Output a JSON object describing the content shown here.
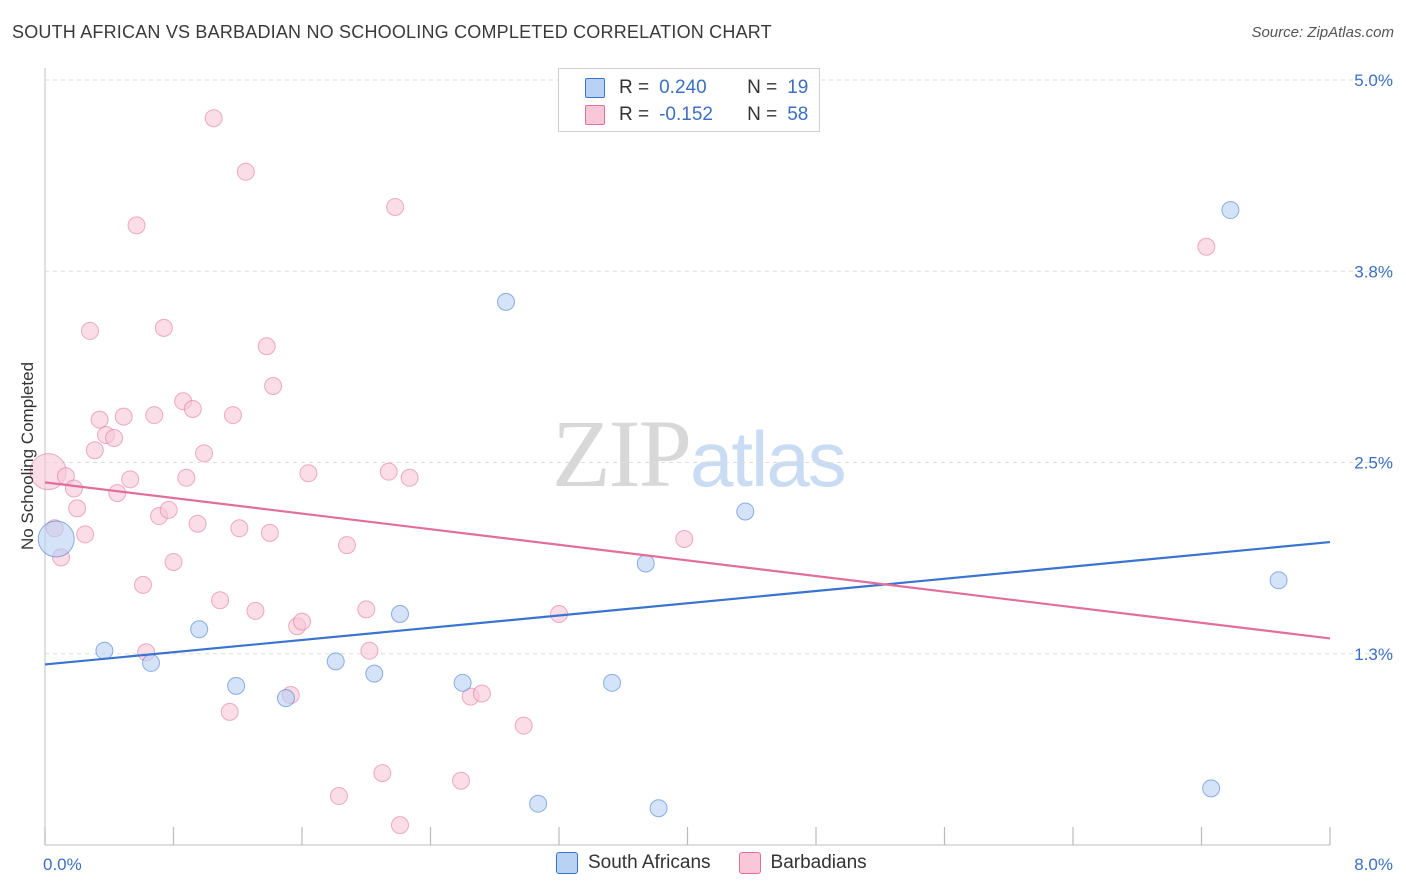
{
  "header": {
    "title": "SOUTH AFRICAN VS BARBADIAN NO SCHOOLING COMPLETED CORRELATION CHART",
    "source": "Source: ZipAtlas.com"
  },
  "watermark": {
    "zip": "ZIP",
    "atlas": "atlas"
  },
  "legend": {
    "rows": [
      {
        "r_label": "R =",
        "r_value": "0.240",
        "n_label": "N =",
        "n_value": "19"
      },
      {
        "r_label": "R =",
        "r_value": "-0.152",
        "n_label": "N =",
        "n_value": "58"
      }
    ]
  },
  "chart_data": {
    "type": "scatter",
    "title": "SOUTH AFRICAN VS BARBADIAN NO SCHOOLING COMPLETED CORRELATION CHART",
    "ylabel": "No Schooling Completed",
    "xlim": [
      0,
      8
    ],
    "ylim": [
      0,
      5.0
    ],
    "x_tick_labels": [
      "0.0%",
      "8.0%"
    ],
    "y_tick_values": [
      1.25,
      2.5,
      3.75,
      5.0
    ],
    "y_tick_labels": [
      "1.3%",
      "2.5%",
      "3.8%",
      "5.0%"
    ],
    "grid": true,
    "legend_position": "top-center",
    "colors": {
      "south_africans": "#3a74d0",
      "south_africans_fill": "#b9d1f3",
      "barbadians": "#e0709a",
      "barbadians_fill": "#f9c7d7",
      "axis_label": "#3b6fc5"
    },
    "series": [
      {
        "name": "South Africans",
        "r": 0.24,
        "n": 19,
        "trend": {
          "x": [
            0,
            8
          ],
          "y": [
            1.18,
            1.98
          ]
        },
        "points": [
          {
            "x": 0.07,
            "y": 2.0,
            "size": "large"
          },
          {
            "x": 0.37,
            "y": 1.27
          },
          {
            "x": 0.66,
            "y": 1.19
          },
          {
            "x": 0.96,
            "y": 1.41
          },
          {
            "x": 1.19,
            "y": 1.04
          },
          {
            "x": 1.5,
            "y": 0.96
          },
          {
            "x": 1.81,
            "y": 1.2
          },
          {
            "x": 2.05,
            "y": 1.12
          },
          {
            "x": 2.21,
            "y": 1.51
          },
          {
            "x": 2.6,
            "y": 1.06
          },
          {
            "x": 2.87,
            "y": 3.55
          },
          {
            "x": 3.07,
            "y": 0.27
          },
          {
            "x": 3.53,
            "y": 1.06
          },
          {
            "x": 3.74,
            "y": 1.84
          },
          {
            "x": 3.82,
            "y": 0.24
          },
          {
            "x": 4.36,
            "y": 2.18
          },
          {
            "x": 7.26,
            "y": 0.37
          },
          {
            "x": 7.38,
            "y": 4.15
          },
          {
            "x": 7.68,
            "y": 1.73
          }
        ]
      },
      {
        "name": "Barbadians",
        "r": -0.152,
        "n": 58,
        "trend": {
          "x": [
            0,
            8
          ],
          "y": [
            2.37,
            1.35
          ]
        },
        "points": [
          {
            "x": 0.02,
            "y": 2.44,
            "size": "large"
          },
          {
            "x": 0.06,
            "y": 2.07
          },
          {
            "x": 0.1,
            "y": 1.88
          },
          {
            "x": 0.13,
            "y": 2.41
          },
          {
            "x": 0.18,
            "y": 2.33
          },
          {
            "x": 0.2,
            "y": 2.2
          },
          {
            "x": 0.25,
            "y": 2.03
          },
          {
            "x": 0.28,
            "y": 3.36
          },
          {
            "x": 0.31,
            "y": 2.58
          },
          {
            "x": 0.34,
            "y": 2.78
          },
          {
            "x": 0.38,
            "y": 2.68
          },
          {
            "x": 0.43,
            "y": 2.66
          },
          {
            "x": 0.45,
            "y": 2.3
          },
          {
            "x": 0.49,
            "y": 2.8
          },
          {
            "x": 0.53,
            "y": 2.39
          },
          {
            "x": 0.57,
            "y": 4.05
          },
          {
            "x": 0.61,
            "y": 1.7
          },
          {
            "x": 0.63,
            "y": 1.26
          },
          {
            "x": 0.68,
            "y": 2.81
          },
          {
            "x": 0.71,
            "y": 2.15
          },
          {
            "x": 0.74,
            "y": 3.38
          },
          {
            "x": 0.77,
            "y": 2.19
          },
          {
            "x": 0.8,
            "y": 1.85
          },
          {
            "x": 0.86,
            "y": 2.9
          },
          {
            "x": 0.88,
            "y": 2.4
          },
          {
            "x": 0.92,
            "y": 2.85
          },
          {
            "x": 0.95,
            "y": 2.1
          },
          {
            "x": 0.99,
            "y": 2.56
          },
          {
            "x": 1.05,
            "y": 4.75
          },
          {
            "x": 1.09,
            "y": 1.6
          },
          {
            "x": 1.15,
            "y": 0.87
          },
          {
            "x": 1.17,
            "y": 2.81
          },
          {
            "x": 1.21,
            "y": 2.07
          },
          {
            "x": 1.25,
            "y": 4.4
          },
          {
            "x": 1.31,
            "y": 1.53
          },
          {
            "x": 1.38,
            "y": 3.26
          },
          {
            "x": 1.4,
            "y": 2.04
          },
          {
            "x": 1.42,
            "y": 3.0
          },
          {
            "x": 1.53,
            "y": 0.98
          },
          {
            "x": 1.57,
            "y": 1.43
          },
          {
            "x": 1.6,
            "y": 1.46
          },
          {
            "x": 1.64,
            "y": 2.43
          },
          {
            "x": 1.83,
            "y": 0.32
          },
          {
            "x": 1.88,
            "y": 1.96
          },
          {
            "x": 2.0,
            "y": 1.54
          },
          {
            "x": 2.02,
            "y": 1.27
          },
          {
            "x": 2.1,
            "y": 0.47
          },
          {
            "x": 2.14,
            "y": 2.44
          },
          {
            "x": 2.18,
            "y": 4.17
          },
          {
            "x": 2.21,
            "y": 0.13
          },
          {
            "x": 2.27,
            "y": 2.4
          },
          {
            "x": 2.59,
            "y": 0.42
          },
          {
            "x": 2.65,
            "y": 0.97
          },
          {
            "x": 2.72,
            "y": 0.99
          },
          {
            "x": 2.98,
            "y": 0.78
          },
          {
            "x": 3.2,
            "y": 1.51
          },
          {
            "x": 3.98,
            "y": 2.0
          },
          {
            "x": 7.23,
            "y": 3.91
          }
        ]
      }
    ]
  }
}
